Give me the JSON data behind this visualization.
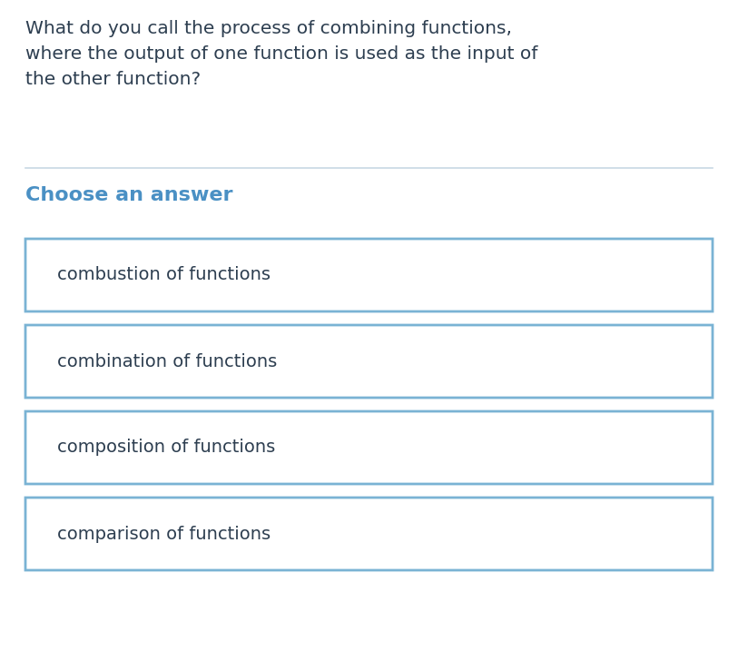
{
  "question": "What do you call the process of combining functions,\nwhere the output of one function is used as the input of\nthe other function?",
  "question_color": "#2d3e50",
  "section_label": "Choose an answer",
  "section_label_color": "#4a90c4",
  "choices": [
    "combustion of functions",
    "combination of functions",
    "composition of functions",
    "comparison of functions"
  ],
  "choice_text_color": "#2d3e50",
  "choice_bg_color": "#ffffff",
  "choice_border_color": "#7ab3d4",
  "divider_color": "#c8d8e4",
  "background_color": "#ffffff",
  "question_fontsize": 14.5,
  "section_label_fontsize": 16,
  "choice_fontsize": 14,
  "figsize": [
    8.13,
    7.39
  ],
  "dpi": 100
}
